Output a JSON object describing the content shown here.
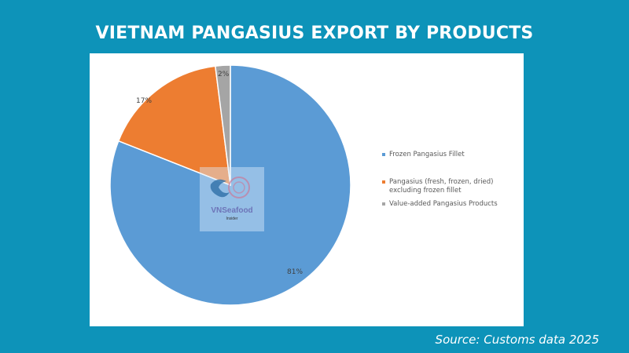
{
  "title": "VIETNAM PANGASIUS EXPORT BY PRODUCTS",
  "source": "Source: Customs data 2025",
  "logo": {
    "name": "VNSeafood",
    "sub": "Insider"
  },
  "colors": {
    "background": "#0d93b9",
    "card": "#ffffff"
  },
  "labels": {
    "s0": "81%",
    "s1": "17%",
    "s2": "2%"
  },
  "legend": [
    {
      "label": "Frozen Pangasius Fillet",
      "color": "#5b9bd5"
    },
    {
      "label": "Pangasius (fresh, frozen, dried) excluding frozen fillet",
      "color": "#ed7d31"
    },
    {
      "label": "Value-added Pangasius Products",
      "color": "#a5a5a5"
    }
  ],
  "chart_data": {
    "type": "pie",
    "title": "VIETNAM PANGASIUS EXPORT BY PRODUCTS",
    "categories": [
      "Frozen Pangasius Fillet",
      "Pangasius (fresh, frozen, dried) excluding frozen fillet",
      "Value-added Pangasius Products"
    ],
    "values": [
      81,
      17,
      2
    ],
    "unit": "%",
    "colors": [
      "#5b9bd5",
      "#ed7d31",
      "#a5a5a5"
    ],
    "legend_position": "right",
    "source": "Source: Customs data 2025"
  }
}
